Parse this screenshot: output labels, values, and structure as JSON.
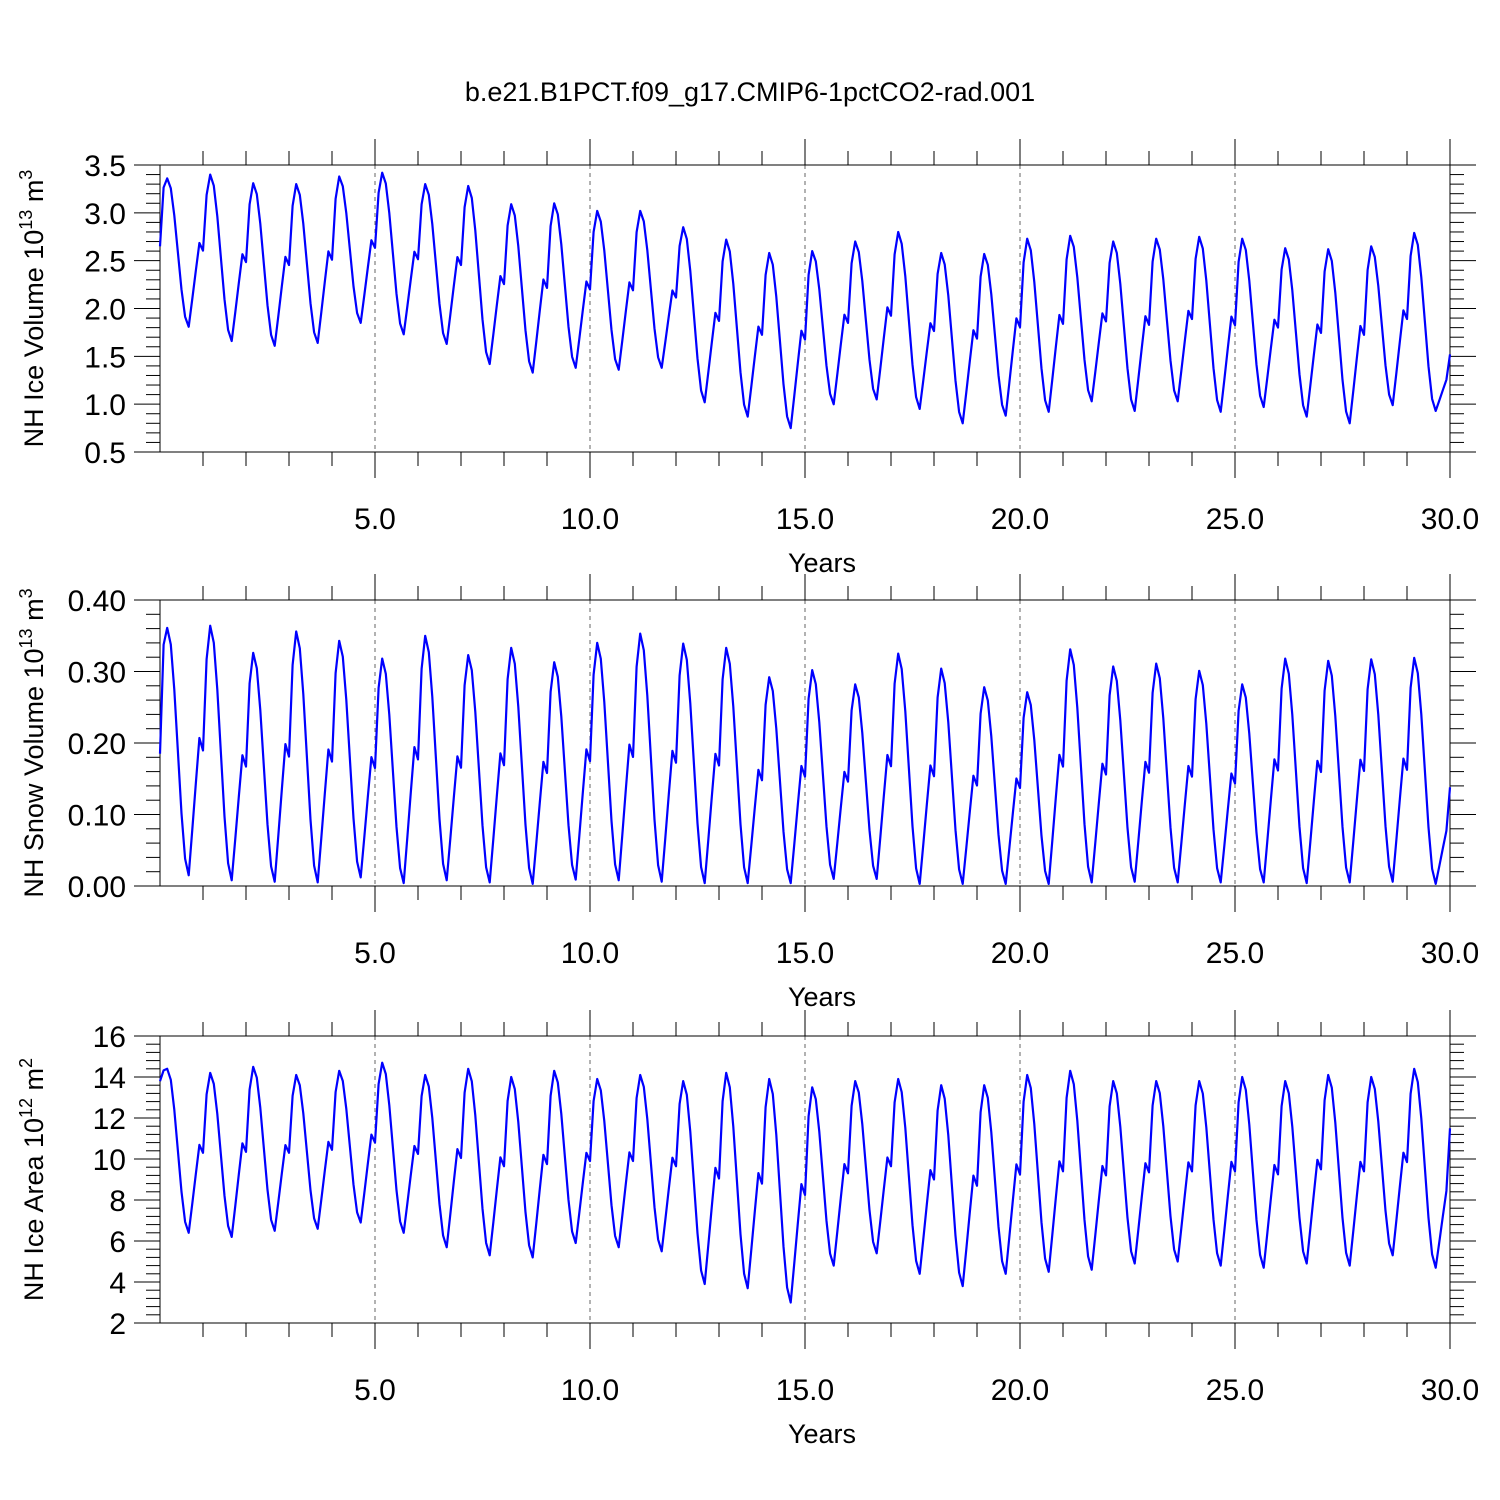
{
  "figure": {
    "title": "b.e21.B1PCT.f09_g17.CMIP6-1pctCO2-rad.001",
    "line_color": "#0000ff"
  },
  "chart_data": [
    {
      "type": "line",
      "ylabel": {
        "base": "NH Ice Volume 10",
        "exp": "13",
        "unit": " m",
        "unit_exp": "3"
      },
      "xlabel": "Years",
      "xlim": [
        0,
        30
      ],
      "ylim": [
        0.5,
        3.5
      ],
      "xticks": [
        5,
        10,
        15,
        20,
        25,
        30
      ],
      "xtick_labels": [
        "5.0",
        "10.0",
        "15.0",
        "20.0",
        "25.0",
        "30.0"
      ],
      "yticks": [
        0.5,
        1.0,
        1.5,
        2.0,
        2.5,
        3.0,
        3.5
      ],
      "ytick_labels": [
        "0.5",
        "1.0",
        "1.5",
        "2.0",
        "2.5",
        "3.0",
        "3.5"
      ],
      "grid": "vertical dashed at major x ticks",
      "series": [
        {
          "start": 2.65,
          "max": [
            3.36,
            3.4,
            3.31,
            3.3,
            3.38,
            3.42,
            3.3,
            3.28,
            3.09,
            3.1,
            3.02,
            3.02,
            2.85,
            2.72,
            2.58,
            2.6,
            2.7,
            2.8,
            2.58,
            2.57,
            2.73,
            2.76,
            2.7,
            2.73,
            2.75,
            2.73,
            2.63,
            2.62,
            2.65,
            2.79
          ],
          "min": [
            1.81,
            1.66,
            1.61,
            1.64,
            1.85,
            1.73,
            1.63,
            1.42,
            1.33,
            1.38,
            1.36,
            1.38,
            1.02,
            0.87,
            0.75,
            1.0,
            1.05,
            0.95,
            0.8,
            0.88,
            0.92,
            1.03,
            0.93,
            1.03,
            0.92,
            0.97,
            0.87,
            0.8,
            0.99,
            0.93
          ],
          "end": 1.52
        }
      ]
    },
    {
      "type": "line",
      "ylabel": {
        "base": "NH Snow Volume 10",
        "exp": "13",
        "unit": " m",
        "unit_exp": "3"
      },
      "xlabel": "Years",
      "xlim": [
        0,
        30
      ],
      "ylim": [
        0.0,
        0.4
      ],
      "xticks": [
        5,
        10,
        15,
        20,
        25,
        30
      ],
      "xtick_labels": [
        "5.0",
        "10.0",
        "15.0",
        "20.0",
        "25.0",
        "30.0"
      ],
      "yticks": [
        0.0,
        0.1,
        0.2,
        0.3,
        0.4
      ],
      "ytick_labels": [
        "0.00",
        "0.10",
        "0.20",
        "0.30",
        "0.40"
      ],
      "grid": "vertical dashed at major x ticks",
      "series": [
        {
          "start": 0.185,
          "max": [
            0.361,
            0.364,
            0.326,
            0.356,
            0.343,
            0.318,
            0.35,
            0.323,
            0.333,
            0.313,
            0.34,
            0.353,
            0.339,
            0.333,
            0.292,
            0.302,
            0.282,
            0.325,
            0.304,
            0.278,
            0.271,
            0.331,
            0.307,
            0.311,
            0.301,
            0.282,
            0.318,
            0.315,
            0.317,
            0.319
          ],
          "min": [
            0.015,
            0.008,
            0.006,
            0.005,
            0.012,
            0.004,
            0.008,
            0.005,
            0.003,
            0.009,
            0.008,
            0.006,
            0.004,
            0.004,
            0.004,
            0.01,
            0.01,
            0.003,
            0.003,
            0.003,
            0.003,
            0.005,
            0.006,
            0.005,
            0.005,
            0.005,
            0.004,
            0.005,
            0.006,
            0.003
          ],
          "end": 0.138
        }
      ]
    },
    {
      "type": "line",
      "ylabel": {
        "base": "NH Ice Area 10",
        "exp": "12",
        "unit": " m",
        "unit_exp": "2"
      },
      "xlabel": "Years",
      "xlim": [
        0,
        30
      ],
      "ylim": [
        2,
        16
      ],
      "xticks": [
        5,
        10,
        15,
        20,
        25,
        30
      ],
      "xtick_labels": [
        "5.0",
        "10.0",
        "15.0",
        "20.0",
        "25.0",
        "30.0"
      ],
      "yticks": [
        2,
        4,
        6,
        8,
        10,
        12,
        14,
        16
      ],
      "ytick_labels": [
        "2",
        "4",
        "6",
        "8",
        "10",
        "12",
        "14",
        "16"
      ],
      "grid": "vertical dashed at major x ticks",
      "series": [
        {
          "start": 13.8,
          "max": [
            14.4,
            14.2,
            14.5,
            14.1,
            14.3,
            14.7,
            14.1,
            14.4,
            14.0,
            14.3,
            13.9,
            14.1,
            13.8,
            14.2,
            13.9,
            13.5,
            13.8,
            13.9,
            13.6,
            13.6,
            14.1,
            14.3,
            13.8,
            13.8,
            13.8,
            14.0,
            13.8,
            14.1,
            14.0,
            14.4
          ],
          "min": [
            6.4,
            6.2,
            6.5,
            6.6,
            6.9,
            6.4,
            5.7,
            5.3,
            5.2,
            5.9,
            5.7,
            5.5,
            3.9,
            3.7,
            3.0,
            4.8,
            5.4,
            4.4,
            3.8,
            4.4,
            4.5,
            4.6,
            4.9,
            5.0,
            4.8,
            4.7,
            4.9,
            4.8,
            5.3,
            4.7
          ],
          "end": 11.5
        }
      ]
    }
  ]
}
